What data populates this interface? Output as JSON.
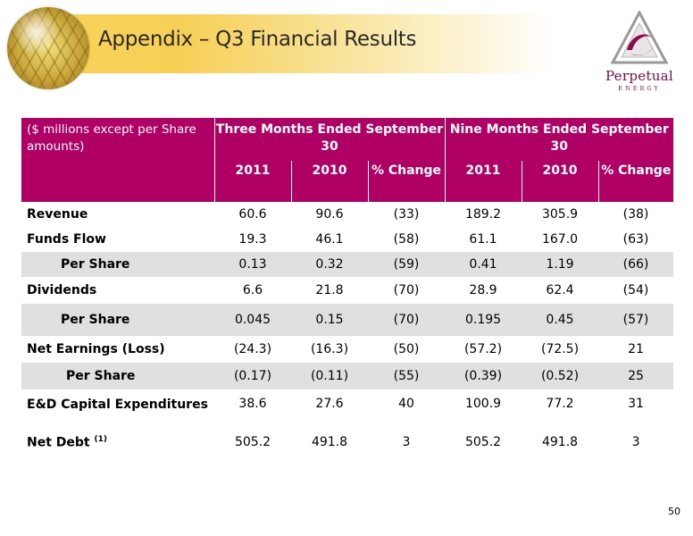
{
  "header": {
    "title": "Appendix – Q3 Financial Results",
    "logo_name": "Perpetual",
    "logo_sub": "ENERGY"
  },
  "table": {
    "label_header": "($ millions except per Share amounts)",
    "group_headers": [
      "Three Months Ended September 30",
      "Nine Months Ended September 30"
    ],
    "sub_headers": [
      "2011",
      "2010",
      "% Change",
      "2011",
      "2010",
      "% Change"
    ],
    "rows": [
      {
        "label": "Revenue",
        "values": [
          "60.6",
          "90.6",
          "(33)",
          "189.2",
          "305.9",
          "(38)"
        ]
      },
      {
        "label": "Funds Flow",
        "values": [
          "19.3",
          "46.1",
          "(58)",
          "61.1",
          "167.0",
          "(63)"
        ]
      },
      {
        "label": "Per Share",
        "values": [
          "0.13",
          "0.32",
          "(59)",
          "0.41",
          "1.19",
          "(66)"
        ]
      },
      {
        "label": "Dividends",
        "values": [
          "6.6",
          "21.8",
          "(70)",
          "28.9",
          "62.4",
          "(54)"
        ]
      },
      {
        "label": "Per Share",
        "values": [
          "0.045",
          "0.15",
          "(70)",
          "0.195",
          "0.45",
          "(57)"
        ]
      },
      {
        "label": "Net Earnings (Loss)",
        "values": [
          "(24.3)",
          "(16.3)",
          "(50)",
          "(57.2)",
          "(72.5)",
          "21"
        ]
      },
      {
        "label": "Per Share",
        "values": [
          "(0.17)",
          "(0.11)",
          "(55)",
          "(0.39)",
          "(0.52)",
          "25"
        ]
      },
      {
        "label": "E&D Capital Expenditures",
        "values": [
          "38.6",
          "27.6",
          "40",
          "100.9",
          "77.2",
          "31"
        ]
      },
      {
        "label": "Net Debt",
        "footnote": "(1)",
        "values": [
          "505.2",
          "491.8",
          "3",
          "505.2",
          "491.8",
          "3"
        ]
      }
    ]
  },
  "page_number": "50",
  "colors": {
    "header_bg": "#b00065",
    "row_shade": "#e0e0e0",
    "logo": "#7a0a4a"
  }
}
